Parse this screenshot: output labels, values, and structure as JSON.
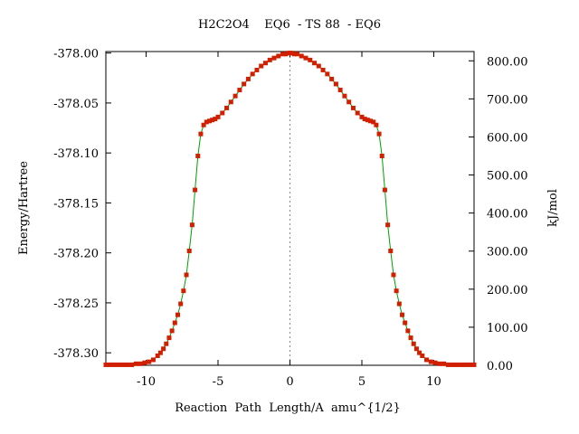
{
  "chart_data": {
    "type": "line",
    "title": "H2C2O4    EQ6  - TS 88  - EQ6",
    "xlabel": "Reaction  Path  Length/A  amu^{1/2}",
    "ylabel": "Energy/Hartree",
    "y2label": "kJ/mol",
    "xlim": [
      -12.8,
      12.8
    ],
    "ylim": [
      -378.3125,
      -377.9985
    ],
    "y2lim": [
      0,
      824.4
    ],
    "xticks": [
      -10,
      -5,
      0,
      5,
      10
    ],
    "xtick_labels": [
      "-10",
      "-5",
      "0",
      "5",
      "10"
    ],
    "yticks": [
      -378.3,
      -378.25,
      -378.2,
      -378.15,
      -378.1,
      -378.05,
      -378.0
    ],
    "ytick_labels": [
      "-378.30",
      "-378.25",
      "-378.20",
      "-378.15",
      "-378.10",
      "-378.05",
      "-378.00"
    ],
    "y2ticks": [
      0,
      100,
      200,
      300,
      400,
      500,
      600,
      700,
      800
    ],
    "y2tick_labels": [
      "0.00",
      "100.00",
      "200.00",
      "300.00",
      "400.00",
      "500.00",
      "600.00",
      "700.00",
      "800.00"
    ],
    "vertical_reference_line": 0,
    "grid": false,
    "line_color": "#00a000",
    "marker_color": "#d02000",
    "x": [
      -12.8,
      -12.5,
      -12.2,
      -11.9,
      -11.6,
      -11.3,
      -11.0,
      -10.7,
      -10.4,
      -10.1,
      -9.8,
      -9.5,
      -9.2,
      -9.0,
      -8.8,
      -8.6,
      -8.4,
      -8.2,
      -8.0,
      -7.8,
      -7.6,
      -7.4,
      -7.2,
      -7.0,
      -6.8,
      -6.6,
      -6.4,
      -6.2,
      -6.0,
      -5.8,
      -5.6,
      -5.4,
      -5.2,
      -5.0,
      -4.7,
      -4.4,
      -4.1,
      -3.8,
      -3.5,
      -3.2,
      -2.9,
      -2.6,
      -2.3,
      -2.0,
      -1.7,
      -1.4,
      -1.1,
      -0.8,
      -0.5,
      -0.3,
      -0.1,
      0.0,
      0.1,
      0.3,
      0.5,
      0.8,
      1.1,
      1.4,
      1.7,
      2.0,
      2.3,
      2.6,
      2.9,
      3.2,
      3.5,
      3.8,
      4.1,
      4.4,
      4.7,
      5.0,
      5.2,
      5.4,
      5.6,
      5.8,
      6.0,
      6.2,
      6.4,
      6.6,
      6.8,
      7.0,
      7.2,
      7.4,
      7.6,
      7.8,
      8.0,
      8.2,
      8.4,
      8.6,
      8.8,
      9.0,
      9.2,
      9.5,
      9.8,
      10.1,
      10.4,
      10.7,
      11.0,
      11.3,
      11.6,
      11.9,
      12.2,
      12.5,
      12.8
    ],
    "y": [
      -378.312,
      -378.312,
      -378.312,
      -378.312,
      -378.312,
      -378.312,
      -378.312,
      -378.311,
      -378.311,
      -378.31,
      -378.309,
      -378.307,
      -378.303,
      -378.3,
      -378.296,
      -378.291,
      -378.285,
      -378.278,
      -378.27,
      -378.262,
      -378.251,
      -378.238,
      -378.222,
      -378.198,
      -378.172,
      -378.137,
      -378.103,
      -378.081,
      -378.072,
      -378.069,
      -378.068,
      -378.067,
      -378.066,
      -378.064,
      -378.06,
      -378.055,
      -378.049,
      -378.043,
      -378.037,
      -378.031,
      -378.026,
      -378.021,
      -378.017,
      -378.013,
      -378.01,
      -378.007,
      -378.005,
      -378.003,
      -378.001,
      -378.001,
      -378.0,
      -378.0,
      -378.0,
      -378.001,
      -378.001,
      -378.003,
      -378.005,
      -378.007,
      -378.01,
      -378.013,
      -378.017,
      -378.021,
      -378.026,
      -378.031,
      -378.037,
      -378.043,
      -378.049,
      -378.055,
      -378.06,
      -378.064,
      -378.066,
      -378.067,
      -378.068,
      -378.069,
      -378.072,
      -378.081,
      -378.103,
      -378.137,
      -378.172,
      -378.198,
      -378.222,
      -378.238,
      -378.251,
      -378.262,
      -378.27,
      -378.278,
      -378.285,
      -378.291,
      -378.296,
      -378.3,
      -378.303,
      -378.307,
      -378.309,
      -378.31,
      -378.311,
      -378.311,
      -378.312,
      -378.312,
      -378.312,
      -378.312,
      -378.312,
      -378.312,
      -378.312
    ]
  }
}
